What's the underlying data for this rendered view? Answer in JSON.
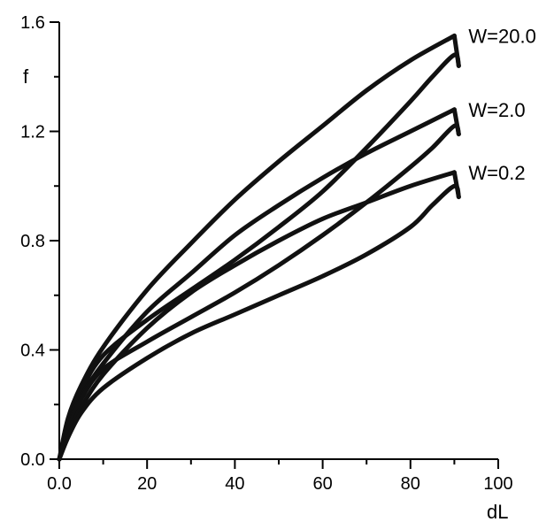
{
  "chart_data": {
    "type": "line",
    "xlabel": "dL",
    "ylabel": "f",
    "xlim": [
      0,
      100
    ],
    "ylim": [
      0,
      1.6
    ],
    "x_ticks": [
      0,
      20,
      40,
      60,
      80,
      100
    ],
    "x_tick_labels": [
      "0.0",
      "20",
      "40",
      "60",
      "80",
      "100"
    ],
    "y_ticks": [
      0,
      0.4,
      0.8,
      1.2,
      1.6
    ],
    "y_tick_labels": [
      "0.0",
      "0.4",
      "0.8",
      "1.2",
      "1.6"
    ],
    "grid": false,
    "line_color": "#111111",
    "series": [
      {
        "name": "W=20.0",
        "loading": {
          "x": [
            0,
            2,
            5,
            10,
            20,
            30,
            40,
            50,
            60,
            70,
            80,
            90
          ],
          "y": [
            0,
            0.15,
            0.27,
            0.41,
            0.62,
            0.79,
            0.95,
            1.09,
            1.22,
            1.35,
            1.46,
            1.55
          ]
        },
        "unloading": {
          "x": [
            91,
            90,
            85,
            80,
            70,
            60,
            50,
            40,
            30,
            20,
            10,
            5,
            2,
            0
          ],
          "y": [
            1.44,
            1.48,
            1.4,
            1.31,
            1.14,
            0.98,
            0.85,
            0.73,
            0.62,
            0.51,
            0.38,
            0.25,
            0.12,
            0
          ]
        }
      },
      {
        "name": "W=2.0",
        "loading": {
          "x": [
            0,
            2,
            5,
            10,
            20,
            30,
            40,
            50,
            60,
            70,
            80,
            90
          ],
          "y": [
            0,
            0.12,
            0.23,
            0.35,
            0.54,
            0.68,
            0.82,
            0.93,
            1.03,
            1.12,
            1.2,
            1.28
          ]
        },
        "unloading": {
          "x": [
            91,
            90,
            85,
            80,
            70,
            60,
            50,
            40,
            30,
            20,
            10,
            5,
            2,
            0
          ],
          "y": [
            1.19,
            1.22,
            1.14,
            1.07,
            0.94,
            0.82,
            0.71,
            0.61,
            0.52,
            0.43,
            0.33,
            0.22,
            0.11,
            0
          ]
        }
      },
      {
        "name": "W=0.2",
        "loading": {
          "x": [
            0,
            2,
            5,
            10,
            20,
            30,
            40,
            50,
            60,
            70,
            80,
            90
          ],
          "y": [
            0,
            0.1,
            0.19,
            0.31,
            0.48,
            0.61,
            0.71,
            0.8,
            0.88,
            0.94,
            1.0,
            1.05
          ]
        },
        "unloading": {
          "x": [
            91,
            90,
            85,
            80,
            70,
            60,
            50,
            40,
            30,
            20,
            10,
            5,
            2,
            0
          ],
          "y": [
            0.96,
            1.0,
            0.93,
            0.85,
            0.75,
            0.67,
            0.6,
            0.53,
            0.46,
            0.37,
            0.26,
            0.17,
            0.08,
            0
          ]
        }
      }
    ]
  }
}
